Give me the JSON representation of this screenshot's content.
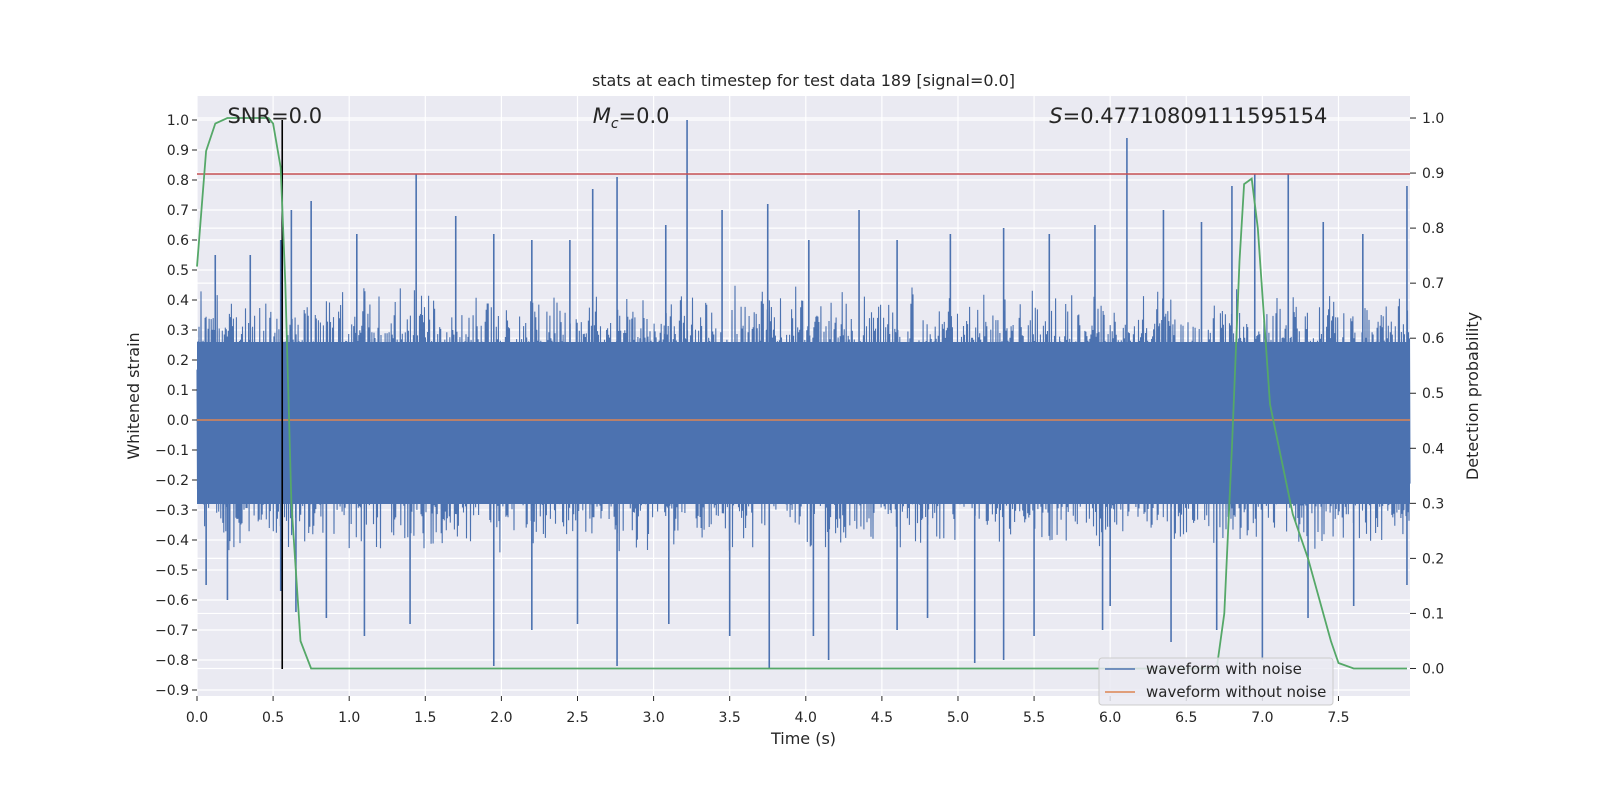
{
  "chart_data": {
    "type": "line",
    "title": "stats at each timestep for test data 189 [signal=0.0]",
    "xlabel": "Time (s)",
    "ylabel": "Whitened strain",
    "y2label": "Detection probability",
    "xlim": [
      0.0,
      7.97
    ],
    "ylim": [
      -0.92,
      1.08
    ],
    "y2lim": [
      -0.05,
      1.04
    ],
    "xticks": [
      "0.0",
      "0.5",
      "1.0",
      "1.5",
      "2.0",
      "2.5",
      "3.0",
      "3.5",
      "4.0",
      "4.5",
      "5.0",
      "5.5",
      "6.0",
      "6.5",
      "7.0",
      "7.5"
    ],
    "yticks": [
      "1.0",
      "0.9",
      "0.8",
      "0.7",
      "0.6",
      "0.5",
      "0.4",
      "0.3",
      "0.2",
      "0.1",
      "0.0",
      "-0.1",
      "-0.2",
      "-0.3",
      "-0.4",
      "-0.5",
      "-0.6",
      "-0.7",
      "-0.8",
      "-0.9"
    ],
    "y2ticks": [
      "1.0",
      "0.9",
      "0.8",
      "0.7",
      "0.6",
      "0.5",
      "0.4",
      "0.3",
      "0.2",
      "0.1",
      "0.0"
    ],
    "grid": true,
    "legend_position": "lower-right",
    "annotations": {
      "snr": "SNR=0.0",
      "mc_symbol": "M",
      "mc_subscript": "c",
      "mc_value": "=0.0",
      "s_symbol": "S",
      "s_value": "=0.47710809111595154"
    },
    "series": [
      {
        "name": "waveform with noise",
        "color": "#4c72b0",
        "envelope_typical": [
          -0.45,
          0.45
        ],
        "spikes": [
          [
            0.12,
            0.55
          ],
          [
            0.35,
            0.55
          ],
          [
            0.55,
            0.6
          ],
          [
            0.62,
            0.7
          ],
          [
            0.75,
            0.73
          ],
          [
            1.05,
            0.62
          ],
          [
            1.44,
            0.82
          ],
          [
            1.7,
            0.68
          ],
          [
            1.95,
            0.62
          ],
          [
            2.2,
            0.6
          ],
          [
            2.45,
            0.6
          ],
          [
            2.6,
            0.77
          ],
          [
            2.76,
            0.81
          ],
          [
            3.08,
            0.65
          ],
          [
            3.22,
            1.0
          ],
          [
            3.45,
            0.7
          ],
          [
            3.75,
            0.72
          ],
          [
            4.02,
            0.6
          ],
          [
            4.35,
            0.7
          ],
          [
            4.6,
            0.6
          ],
          [
            4.95,
            0.62
          ],
          [
            5.3,
            0.64
          ],
          [
            5.6,
            0.62
          ],
          [
            5.9,
            0.65
          ],
          [
            6.11,
            0.94
          ],
          [
            6.35,
            0.7
          ],
          [
            6.6,
            0.66
          ],
          [
            6.8,
            0.78
          ],
          [
            6.95,
            0.82
          ],
          [
            7.17,
            0.82
          ],
          [
            7.4,
            0.66
          ],
          [
            7.66,
            0.62
          ],
          [
            7.95,
            0.78
          ],
          [
            0.06,
            -0.55
          ],
          [
            0.2,
            -0.6
          ],
          [
            0.55,
            -0.57
          ],
          [
            0.65,
            -0.64
          ],
          [
            0.85,
            -0.66
          ],
          [
            1.1,
            -0.72
          ],
          [
            1.4,
            -0.68
          ],
          [
            1.95,
            -0.82
          ],
          [
            2.2,
            -0.7
          ],
          [
            2.5,
            -0.68
          ],
          [
            2.76,
            -0.82
          ],
          [
            3.1,
            -0.68
          ],
          [
            3.5,
            -0.72
          ],
          [
            3.76,
            -0.83
          ],
          [
            4.05,
            -0.72
          ],
          [
            4.15,
            -0.8
          ],
          [
            4.6,
            -0.7
          ],
          [
            4.8,
            -0.66
          ],
          [
            5.11,
            -0.81
          ],
          [
            5.3,
            -0.8
          ],
          [
            5.5,
            -0.72
          ],
          [
            5.95,
            -0.7
          ],
          [
            6.0,
            -0.62
          ],
          [
            6.4,
            -0.74
          ],
          [
            6.7,
            -0.7
          ],
          [
            7.0,
            -0.8
          ],
          [
            7.3,
            -0.66
          ],
          [
            7.6,
            -0.62
          ],
          [
            7.95,
            -0.55
          ]
        ]
      },
      {
        "name": "waveform without noise",
        "color": "#dd8452",
        "x": [
          0.0,
          7.97
        ],
        "y": [
          0.0,
          0.0
        ]
      },
      {
        "name": "detection probability",
        "color": "#55a868",
        "axis": "right",
        "x": [
          0.0,
          0.06,
          0.12,
          0.2,
          0.3,
          0.4,
          0.47,
          0.5,
          0.55,
          0.58,
          0.62,
          0.68,
          0.75,
          0.8,
          1.0,
          2.0,
          3.0,
          4.0,
          5.0,
          6.0,
          6.7,
          6.75,
          6.8,
          6.85,
          6.88,
          6.93,
          6.97,
          7.05,
          7.2,
          7.3,
          7.45,
          7.5,
          7.6,
          7.95
        ],
        "y": [
          0.73,
          0.94,
          0.99,
          1.0,
          1.0,
          1.0,
          1.0,
          0.99,
          0.91,
          0.7,
          0.3,
          0.05,
          0.0,
          0.0,
          0.0,
          0.0,
          0.0,
          0.0,
          0.0,
          0.0,
          0.0,
          0.1,
          0.4,
          0.74,
          0.88,
          0.89,
          0.8,
          0.48,
          0.28,
          0.2,
          0.05,
          0.01,
          0.0,
          0.0
        ]
      }
    ],
    "reference_lines": {
      "threshold_y": 0.82,
      "threshold_color": "#c44e52",
      "marker_x": 0.56,
      "marker_ymin": -0.83,
      "marker_ymax": 1.0,
      "marker_color": "#000000"
    },
    "style": {
      "plot_background": "#eaeaf2",
      "grid_color": "#ffffff"
    }
  }
}
